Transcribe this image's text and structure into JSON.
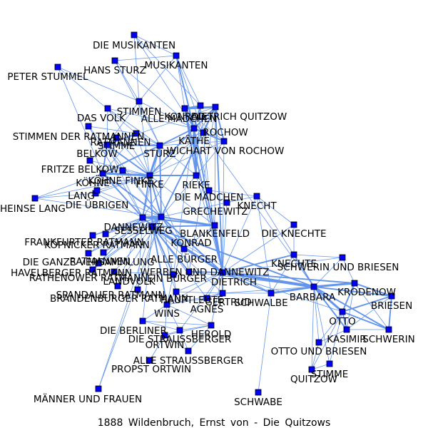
{
  "caption": "1888 Wildenbruch, Ernst von - Die Quitzows",
  "colors": {
    "node": "#0000ff",
    "edge": "#6495ED",
    "label": "#000000"
  },
  "nodes": [
    {
      "id": "die_musikanten",
      "label": "DIE MUSIKANTEN"
    },
    {
      "id": "hans_sturz",
      "label": "HANS STURZ"
    },
    {
      "id": "musikanten",
      "label": "MUSIKANTEN"
    },
    {
      "id": "peter_stummel",
      "label": "PETER STUMMEL"
    },
    {
      "id": "stimmen",
      "label": "STIMMEN"
    },
    {
      "id": "das_volk",
      "label": "DAS VOLK"
    },
    {
      "id": "konrad",
      "label": "KONRAD"
    },
    {
      "id": "alle_maedchen",
      "label": "ALLE MÄDCHEN"
    },
    {
      "id": "dietrich_quitzow",
      "label": "DIETRICH QUITZOW"
    },
    {
      "id": "rochow",
      "label": "ROCHOW"
    },
    {
      "id": "stimmen_der_ratmannen",
      "label": "STIMMEN DER RATMANNEN"
    },
    {
      "id": "ratmannen",
      "label": "RATMANNEN"
    },
    {
      "id": "kaethe",
      "label": "KÄTHE"
    },
    {
      "id": "stimme",
      "label": "STIMME"
    },
    {
      "id": "belkow",
      "label": "BELKOW"
    },
    {
      "id": "sturz",
      "label": "STURZ"
    },
    {
      "id": "wichart_von_rochow",
      "label": "WICHART VON ROCHOW"
    },
    {
      "id": "fritze_belkow",
      "label": "FRITZE BELKOW"
    },
    {
      "id": "koehne_finke",
      "label": "KÖHNE FINKE"
    },
    {
      "id": "koehne",
      "label": "KÖHNE"
    },
    {
      "id": "finke",
      "label": "FINKE"
    },
    {
      "id": "rieke",
      "label": "RIEKE"
    },
    {
      "id": "lang",
      "label": "LANG"
    },
    {
      "id": "heinse_lang",
      "label": "HEINSE LANG"
    },
    {
      "id": "die_uebrigen",
      "label": "DIE ÜBRIGEN"
    },
    {
      "id": "die_maedchen",
      "label": "DIE MÄDCHEN"
    },
    {
      "id": "knecht",
      "label": "KNECHT"
    },
    {
      "id": "grechewitz",
      "label": "GRECHEWITZ"
    },
    {
      "id": "dannewitz",
      "label": "DANNEWITZ"
    },
    {
      "id": "sesselweg",
      "label": "SESSELWEG"
    },
    {
      "id": "blankenfeld",
      "label": "BLANKENFELD"
    },
    {
      "id": "die_knechte",
      "label": "DIE KNECHTE"
    },
    {
      "id": "frankfurter_ratmann",
      "label": "FRANKFURTER RATMANN"
    },
    {
      "id": "koepnicker_ratmann",
      "label": "KÖPNICKER RATMANN"
    },
    {
      "id": "konrad_2",
      "label": "KONRAD"
    },
    {
      "id": "die_ganze_versammlung",
      "label": "DIE GANZE VERSAMMLUNG"
    },
    {
      "id": "alle_buerger",
      "label": "ALLE BÜRGER"
    },
    {
      "id": "ratmannen_2",
      "label": "RATMANNEN"
    },
    {
      "id": "havelberger_ratmann",
      "label": "HAVELBERGER RATMANN"
    },
    {
      "id": "rathenower_ratmann",
      "label": "RATHENOWER RATMANN"
    },
    {
      "id": "werben_und_dannewitz",
      "label": "WERBEN UND DANNEWITZ"
    },
    {
      "id": "dietrich",
      "label": "DIETRICH"
    },
    {
      "id": "knechte",
      "label": "KNECHTE"
    },
    {
      "id": "schwerin_und_briesen",
      "label": "SCHWERIN UND BRIESEN"
    },
    {
      "id": "landvolk",
      "label": "LANDVOLK"
    },
    {
      "id": "ein_buerger",
      "label": "EIN BÜRGER"
    },
    {
      "id": "spandauer_ratmann",
      "label": "SPANDAUER RATMANN"
    },
    {
      "id": "brandenburger_ratmann",
      "label": "BRANDENBURGER RATMANN"
    },
    {
      "id": "hauptleute",
      "label": "HAUPTLEUTE"
    },
    {
      "id": "schwalbe",
      "label": "SCHWALBE"
    },
    {
      "id": "barbara",
      "label": "BARBARA"
    },
    {
      "id": "krodenow",
      "label": "KRODENOW"
    },
    {
      "id": "gertrud",
      "label": "GERTRUD"
    },
    {
      "id": "agnes",
      "label": "AGNES"
    },
    {
      "id": "briesen",
      "label": "BRIESEN"
    },
    {
      "id": "wins",
      "label": "WINS"
    },
    {
      "id": "otto",
      "label": "OTTO"
    },
    {
      "id": "die_berliner",
      "label": "DIE BERLINER"
    },
    {
      "id": "herold",
      "label": "HEROLD"
    },
    {
      "id": "die_straussberger",
      "label": "DIE STRAUSSBERGER"
    },
    {
      "id": "ortwin",
      "label": "ORTWIN"
    },
    {
      "id": "kasimir",
      "label": "KASIMIR"
    },
    {
      "id": "schwerin",
      "label": "SCHWERIN"
    },
    {
      "id": "otto_und_briesen",
      "label": "OTTO UND BRIESEN"
    },
    {
      "id": "alle_straussberger",
      "label": "ALLE STRAUSSBERGER"
    },
    {
      "id": "propst_ortwin",
      "label": "PROPST ORTWIN"
    },
    {
      "id": "stimme_2",
      "label": "STIMME"
    },
    {
      "id": "quitzow",
      "label": "QUITZOW"
    },
    {
      "id": "maenner_und_frauen",
      "label": "MÄNNER UND FRAUEN"
    },
    {
      "id": "schwabe",
      "label": "SCHWABE"
    }
  ],
  "edges": [
    [
      "die_musikanten",
      "musikanten",
      1
    ],
    [
      "die_musikanten",
      "stimmen",
      1
    ],
    [
      "die_musikanten",
      "alle_maedchen",
      1
    ],
    [
      "die_musikanten",
      "kaethe",
      1
    ],
    [
      "hans_sturz",
      "stimmen",
      1
    ],
    [
      "hans_sturz",
      "sturz",
      1
    ],
    [
      "hans_sturz",
      "musikanten",
      1
    ],
    [
      "hans_sturz",
      "kaethe",
      1
    ],
    [
      "musikanten",
      "kaethe",
      2
    ],
    [
      "musikanten",
      "konrad",
      1
    ],
    [
      "musikanten",
      "alle_maedchen",
      1
    ],
    [
      "musikanten",
      "stimmen",
      1
    ],
    [
      "musikanten",
      "rochow",
      1
    ],
    [
      "peter_stummel",
      "stimmen",
      1
    ],
    [
      "peter_stummel",
      "ratmannen",
      1
    ],
    [
      "peter_stummel",
      "koehne",
      1
    ],
    [
      "stimmen",
      "kaethe",
      1
    ],
    [
      "stimmen",
      "sturz",
      1
    ],
    [
      "stimmen",
      "finke",
      1
    ],
    [
      "stimmen",
      "belkow",
      1
    ],
    [
      "das_volk",
      "kaethe",
      1
    ],
    [
      "das_volk",
      "finke",
      1
    ],
    [
      "das_volk",
      "belkow",
      1
    ],
    [
      "das_volk",
      "sturz",
      1
    ],
    [
      "konrad",
      "dietrich_quitzow",
      3
    ],
    [
      "konrad",
      "kaethe",
      2
    ],
    [
      "konrad",
      "rochow",
      1
    ],
    [
      "konrad",
      "wichart_von_rochow",
      1
    ],
    [
      "konrad",
      "alle_maedchen",
      2
    ],
    [
      "konrad",
      "rieke",
      2
    ],
    [
      "konrad",
      "dietrich",
      2
    ],
    [
      "konrad",
      "barbara",
      1
    ],
    [
      "alle_maedchen",
      "kaethe",
      2
    ],
    [
      "alle_maedchen",
      "rieke",
      1
    ],
    [
      "alle_maedchen",
      "die_maedchen",
      1
    ],
    [
      "dietrich_quitzow",
      "rochow",
      2
    ],
    [
      "dietrich_quitzow",
      "wichart_von_rochow",
      2
    ],
    [
      "dietrich_quitzow",
      "kaethe",
      2
    ],
    [
      "dietrich_quitzow",
      "dietrich",
      2
    ],
    [
      "dietrich_quitzow",
      "sesselweg",
      2
    ],
    [
      "dietrich_quitzow",
      "dannewitz",
      1
    ],
    [
      "dietrich_quitzow",
      "blankenfeld",
      1
    ],
    [
      "dietrich_quitzow",
      "werben_und_dannewitz",
      1
    ],
    [
      "dietrich_quitzow",
      "belkow",
      1
    ],
    [
      "rochow",
      "wichart_von_rochow",
      2
    ],
    [
      "rochow",
      "kaethe",
      1
    ],
    [
      "rochow",
      "sturz",
      1
    ],
    [
      "rochow",
      "finke",
      1
    ],
    [
      "stimmen_der_ratmannen",
      "ratmannen",
      1
    ],
    [
      "stimmen_der_ratmannen",
      "sesselweg",
      1
    ],
    [
      "stimmen_der_ratmannen",
      "dannewitz",
      1
    ],
    [
      "ratmannen",
      "belkow",
      2
    ],
    [
      "ratmannen",
      "sturz",
      1
    ],
    [
      "ratmannen",
      "finke",
      1
    ],
    [
      "ratmannen",
      "koehne",
      1
    ],
    [
      "kaethe",
      "rieke",
      3
    ],
    [
      "kaethe",
      "finke",
      2
    ],
    [
      "kaethe",
      "sturz",
      2
    ],
    [
      "kaethe",
      "dietrich",
      2
    ],
    [
      "kaethe",
      "die_maedchen",
      1
    ],
    [
      "kaethe",
      "wichart_von_rochow",
      2
    ],
    [
      "kaethe",
      "ein_buerger",
      1
    ],
    [
      "stimme",
      "sturz",
      1
    ],
    [
      "stimme",
      "finke",
      1
    ],
    [
      "stimme",
      "belkow",
      1
    ],
    [
      "belkow",
      "finke",
      2
    ],
    [
      "belkow",
      "sturz",
      2
    ],
    [
      "belkow",
      "koehne",
      2
    ],
    [
      "belkow",
      "fritze_belkow",
      1
    ],
    [
      "belkow",
      "sesselweg",
      1
    ],
    [
      "belkow",
      "dannewitz",
      1
    ],
    [
      "sturz",
      "finke",
      3
    ],
    [
      "sturz",
      "koehne",
      2
    ],
    [
      "sturz",
      "rieke",
      1
    ],
    [
      "sturz",
      "sesselweg",
      2
    ],
    [
      "sturz",
      "dannewitz",
      1
    ],
    [
      "sturz",
      "wichart_von_rochow",
      1
    ],
    [
      "wichart_von_rochow",
      "rieke",
      1
    ],
    [
      "wichart_von_rochow",
      "dietrich",
      1
    ],
    [
      "wichart_von_rochow",
      "finke",
      1
    ],
    [
      "fritze_belkow",
      "finke",
      1
    ],
    [
      "fritze_belkow",
      "koehne",
      1
    ],
    [
      "koehne_finke",
      "finke",
      1
    ],
    [
      "koehne_finke",
      "koehne",
      1
    ],
    [
      "koehne",
      "finke",
      3
    ],
    [
      "koehne",
      "sesselweg",
      2
    ],
    [
      "koehne",
      "dannewitz",
      2
    ],
    [
      "koehne",
      "lang",
      1
    ],
    [
      "koehne",
      "die_uebrigen",
      1
    ],
    [
      "koehne",
      "heinse_lang",
      1
    ],
    [
      "finke",
      "rieke",
      2
    ],
    [
      "finke",
      "sesselweg",
      2
    ],
    [
      "finke",
      "dannewitz",
      2
    ],
    [
      "finke",
      "lang",
      1
    ],
    [
      "finke",
      "heinse_lang",
      1
    ],
    [
      "finke",
      "die_uebrigen",
      1
    ],
    [
      "finke",
      "blankenfeld",
      1
    ],
    [
      "finke",
      "konrad_2",
      2
    ],
    [
      "finke",
      "alle_buerger",
      1
    ],
    [
      "rieke",
      "dietrich",
      1
    ],
    [
      "rieke",
      "die_maedchen",
      1
    ],
    [
      "rieke",
      "sesselweg",
      1
    ],
    [
      "lang",
      "heinse_lang",
      1
    ],
    [
      "lang",
      "die_uebrigen",
      1
    ],
    [
      "lang",
      "dannewitz",
      1
    ],
    [
      "heinse_lang",
      "sesselweg",
      1
    ],
    [
      "die_uebrigen",
      "sesselweg",
      1
    ],
    [
      "die_maedchen",
      "knecht",
      1
    ],
    [
      "die_maedchen",
      "dietrich",
      1
    ],
    [
      "knecht",
      "grechewitz",
      1
    ],
    [
      "knecht",
      "dietrich",
      1
    ],
    [
      "knecht",
      "die_knechte",
      1
    ],
    [
      "knecht",
      "schwalbe",
      1
    ],
    [
      "knecht",
      "barbara",
      1
    ],
    [
      "grechewitz",
      "dietrich",
      1
    ],
    [
      "grechewitz",
      "sesselweg",
      1
    ],
    [
      "dannewitz",
      "sesselweg",
      3
    ],
    [
      "dannewitz",
      "blankenfeld",
      2
    ],
    [
      "dannewitz",
      "konrad_2",
      2
    ],
    [
      "dannewitz",
      "frankfurter_ratmann",
      1
    ],
    [
      "dannewitz",
      "koepnicker_ratmann",
      1
    ],
    [
      "dannewitz",
      "die_ganze_versammlung",
      1
    ],
    [
      "dannewitz",
      "ratmannen_2",
      1
    ],
    [
      "dannewitz",
      "havelberger_ratmann",
      1
    ],
    [
      "dannewitz",
      "rathenower_ratmann",
      1
    ],
    [
      "dannewitz",
      "spandauer_ratmann",
      1
    ],
    [
      "dannewitz",
      "brandenburger_ratmann",
      1
    ],
    [
      "dannewitz",
      "alle_buerger",
      1
    ],
    [
      "sesselweg",
      "blankenfeld",
      2
    ],
    [
      "sesselweg",
      "konrad_2",
      3
    ],
    [
      "sesselweg",
      "frankfurter_ratmann",
      1
    ],
    [
      "sesselweg",
      "koepnicker_ratmann",
      1
    ],
    [
      "sesselweg",
      "die_ganze_versammlung",
      1
    ],
    [
      "sesselweg",
      "ratmannen_2",
      1
    ],
    [
      "sesselweg",
      "havelberger_ratmann",
      1
    ],
    [
      "sesselweg",
      "rathenower_ratmann",
      1
    ],
    [
      "sesselweg",
      "spandauer_ratmann",
      1
    ],
    [
      "sesselweg",
      "brandenburger_ratmann",
      1
    ],
    [
      "sesselweg",
      "alle_buerger",
      2
    ],
    [
      "sesselweg",
      "ein_buerger",
      1
    ],
    [
      "sesselweg",
      "dietrich",
      2
    ],
    [
      "blankenfeld",
      "konrad_2",
      2
    ],
    [
      "blankenfeld",
      "dietrich",
      2
    ],
    [
      "blankenfeld",
      "alle_buerger",
      1
    ],
    [
      "die_knechte",
      "knechte",
      1
    ],
    [
      "die_knechte",
      "dietrich",
      1
    ],
    [
      "konrad_2",
      "dietrich",
      3
    ],
    [
      "konrad_2",
      "alle_buerger",
      2
    ],
    [
      "konrad_2",
      "werben_und_dannewitz",
      2
    ],
    [
      "konrad_2",
      "ein_buerger",
      2
    ],
    [
      "konrad_2",
      "hauptleute",
      1
    ],
    [
      "konrad_2",
      "wins",
      2
    ],
    [
      "konrad_2",
      "barbara",
      2
    ],
    [
      "konrad_2",
      "die_berliner",
      1
    ],
    [
      "konrad_2",
      "gertrud",
      1
    ],
    [
      "konrad_2",
      "agnes",
      1
    ],
    [
      "konrad_2",
      "landvolk",
      1
    ],
    [
      "konrad_2",
      "schwalbe",
      1
    ],
    [
      "alle_buerger",
      "ein_buerger",
      1
    ],
    [
      "alle_buerger",
      "werben_und_dannewitz",
      1
    ],
    [
      "alle_buerger",
      "dietrich",
      1
    ],
    [
      "werben_und_dannewitz",
      "dietrich",
      2
    ],
    [
      "werben_und_dannewitz",
      "barbara",
      1
    ],
    [
      "dietrich",
      "barbara",
      4
    ],
    [
      "dietrich",
      "schwalbe",
      2
    ],
    [
      "dietrich",
      "knechte",
      2
    ],
    [
      "dietrich",
      "gertrud",
      2
    ],
    [
      "dietrich",
      "agnes",
      1
    ],
    [
      "dietrich",
      "hauptleute",
      1
    ],
    [
      "dietrich",
      "wins",
      1
    ],
    [
      "dietrich",
      "krodenow",
      2
    ],
    [
      "dietrich",
      "schwerin_und_briesen",
      1
    ],
    [
      "dietrich",
      "otto",
      1
    ],
    [
      "dietrich",
      "herold",
      1
    ],
    [
      "dietrich",
      "die_straussberger",
      1
    ],
    [
      "knechte",
      "barbara",
      2
    ],
    [
      "knechte",
      "schwerin_und_briesen",
      1
    ],
    [
      "knechte",
      "schwalbe",
      1
    ],
    [
      "schwerin_und_briesen",
      "barbara",
      1
    ],
    [
      "schwerin_und_briesen",
      "krodenow",
      1
    ],
    [
      "landvolk",
      "ein_buerger",
      1
    ],
    [
      "ein_buerger",
      "wins",
      1
    ],
    [
      "ein_buerger",
      "hauptleute",
      1
    ],
    [
      "hauptleute",
      "wins",
      1
    ],
    [
      "hauptleute",
      "gertrud",
      1
    ],
    [
      "schwalbe",
      "barbara",
      3
    ],
    [
      "schwalbe",
      "gertrud",
      1
    ],
    [
      "schwalbe",
      "schwabe",
      1
    ],
    [
      "barbara",
      "krodenow",
      3
    ],
    [
      "barbara",
      "otto",
      3
    ],
    [
      "barbara",
      "briesen",
      2
    ],
    [
      "barbara",
      "schwerin",
      2
    ],
    [
      "barbara",
      "kasimir",
      2
    ],
    [
      "barbara",
      "otto_und_briesen",
      1
    ],
    [
      "barbara",
      "quitzow",
      1
    ],
    [
      "barbara",
      "stimme_2",
      1
    ],
    [
      "barbara",
      "gertrud",
      1
    ],
    [
      "krodenow",
      "otto",
      2
    ],
    [
      "krodenow",
      "briesen",
      2
    ],
    [
      "krodenow",
      "schwerin",
      1
    ],
    [
      "krodenow",
      "kasimir",
      1
    ],
    [
      "gertrud",
      "agnes",
      1
    ],
    [
      "gertrud",
      "wins",
      1
    ],
    [
      "briesen",
      "otto",
      2
    ],
    [
      "briesen",
      "schwerin",
      2
    ],
    [
      "briesen",
      "kasimir",
      1
    ],
    [
      "wins",
      "die_berliner",
      1
    ],
    [
      "wins",
      "herold",
      1
    ],
    [
      "wins",
      "die_straussberger",
      1
    ],
    [
      "wins",
      "ortwin",
      1
    ],
    [
      "wins",
      "agnes",
      1
    ],
    [
      "otto",
      "schwerin",
      2
    ],
    [
      "otto",
      "kasimir",
      2
    ],
    [
      "otto",
      "otto_und_briesen",
      1
    ],
    [
      "otto",
      "quitzow",
      1
    ],
    [
      "otto",
      "stimme_2",
      1
    ],
    [
      "die_berliner",
      "herold",
      1
    ],
    [
      "die_berliner",
      "die_straussberger",
      1
    ],
    [
      "herold",
      "die_straussberger",
      1
    ],
    [
      "herold",
      "alle_straussberger",
      1
    ],
    [
      "herold",
      "ortwin",
      1
    ],
    [
      "die_straussberger",
      "ortwin",
      1
    ],
    [
      "die_straussberger",
      "alle_straussberger",
      1
    ],
    [
      "ortwin",
      "propst_ortwin",
      1
    ],
    [
      "ortwin",
      "alle_straussberger",
      1
    ],
    [
      "kasimir",
      "schwerin",
      1
    ],
    [
      "kasimir",
      "otto_und_briesen",
      1
    ],
    [
      "otto_und_briesen",
      "quitzow",
      1
    ],
    [
      "stimme_2",
      "quitzow",
      1
    ],
    [
      "maenner_und_frauen",
      "konrad_2",
      1
    ],
    [
      "maenner_und_frauen",
      "sesselweg",
      1
    ]
  ]
}
